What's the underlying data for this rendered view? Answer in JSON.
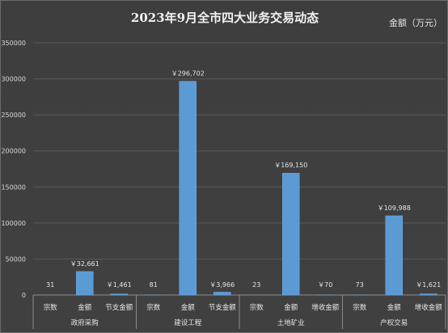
{
  "title": "2023年9月全市四大业务交易动态",
  "unit": "金额（万元）",
  "chart_data": {
    "type": "bar",
    "title": "2023年9月全市四大业务交易动态",
    "unit": "金额（万元）",
    "ylim": [
      0,
      350000
    ],
    "yticks": [
      "0",
      "50000",
      "100000",
      "150000",
      "200000",
      "250000",
      "300000",
      "350000"
    ],
    "grid": true,
    "groups": [
      {
        "name": "政府采购",
        "bars": [
          {
            "label": "宗数",
            "value": 31,
            "data_label": "31"
          },
          {
            "label": "金额",
            "value": 32661,
            "data_label": "￥32,661"
          },
          {
            "label": "节支金额",
            "value": 1461,
            "data_label": "￥1,461"
          }
        ]
      },
      {
        "name": "建设工程",
        "bars": [
          {
            "label": "宗数",
            "value": 81,
            "data_label": "81"
          },
          {
            "label": "金额",
            "value": 296702,
            "data_label": "￥296,702"
          },
          {
            "label": "节支金额",
            "value": 3966,
            "data_label": "￥3,966"
          }
        ]
      },
      {
        "name": "土地矿业",
        "bars": [
          {
            "label": "宗数",
            "value": 23,
            "data_label": "23"
          },
          {
            "label": "金额",
            "value": 169150,
            "data_label": "￥169,150"
          },
          {
            "label": "增收金额",
            "value": 70,
            "data_label": "￥70"
          }
        ]
      },
      {
        "name": "产权交易",
        "bars": [
          {
            "label": "宗数",
            "value": 73,
            "data_label": "73"
          },
          {
            "label": "金额",
            "value": 109988,
            "data_label": "￥109,988"
          },
          {
            "label": "增收金额",
            "value": 1621,
            "data_label": "￥1,621"
          }
        ]
      }
    ],
    "bar_color": "#5b9bd5"
  }
}
